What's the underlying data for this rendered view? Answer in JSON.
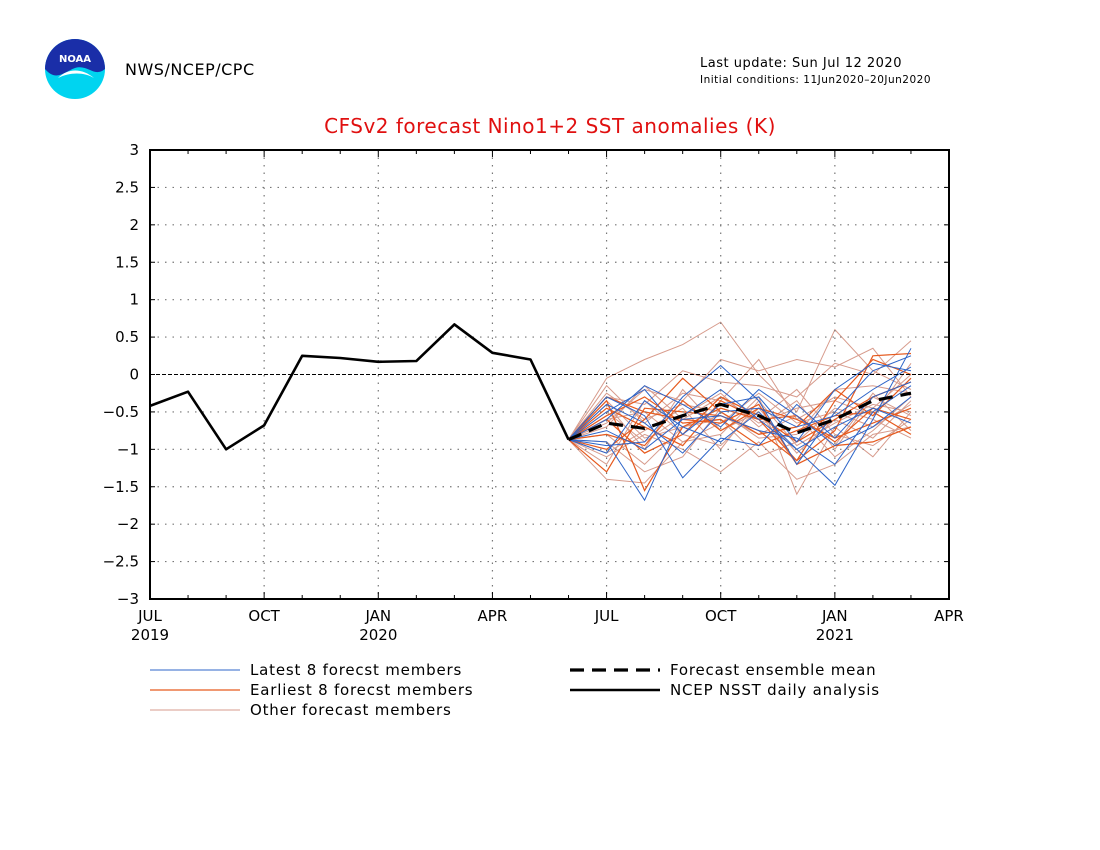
{
  "header": {
    "agency": "NWS/NCEP/CPC",
    "logo_text": "NOAA",
    "last_update": "Last update: Sun Jul 12 2020",
    "initial_conditions": "Initial conditions: 11Jun2020–20Jun2020"
  },
  "colors": {
    "title": "#e01010",
    "latest": "#2d64c8",
    "earliest": "#e65a1e",
    "other": "#d79b8c",
    "mean": "#000000",
    "analysis": "#000000"
  },
  "chart_data": {
    "type": "line",
    "title": "CFSv2 forecast Nino1+2 SST anomalies (K)",
    "xlabel": "",
    "ylabel": "",
    "ylim": [
      -3,
      3
    ],
    "yticks": [
      -3,
      -2.5,
      -2,
      -1.5,
      -1,
      -0.5,
      0,
      0.5,
      1,
      1.5,
      2,
      2.5,
      3
    ],
    "ytick_labels": [
      "−3",
      "−2.5",
      "−2",
      "−1.5",
      "−1",
      "−0.5",
      "0",
      "0.5",
      "1",
      "1.5",
      "2",
      "2.5",
      "3"
    ],
    "xlim": [
      0,
      21
    ],
    "xticks": [
      {
        "x": 0,
        "label": "JUL",
        "year": "2019"
      },
      {
        "x": 3,
        "label": "OCT",
        "year": ""
      },
      {
        "x": 6,
        "label": "JAN",
        "year": "2020"
      },
      {
        "x": 9,
        "label": "APR",
        "year": ""
      },
      {
        "x": 12,
        "label": "JUL",
        "year": ""
      },
      {
        "x": 15,
        "label": "OCT",
        "year": ""
      },
      {
        "x": 18,
        "label": "JAN",
        "year": "2021"
      },
      {
        "x": 21,
        "label": "APR",
        "year": ""
      }
    ],
    "grid": true,
    "zero_line": true,
    "analysis": {
      "name": "NCEP NSST daily analysis",
      "x": [
        0,
        1,
        2,
        3,
        4,
        5,
        6,
        7,
        8,
        9,
        10,
        11
      ],
      "y": [
        -0.42,
        -0.23,
        -1.0,
        -0.68,
        0.25,
        0.22,
        0.17,
        0.18,
        0.67,
        0.29,
        0.2,
        -0.87
      ]
    },
    "ensemble_mean": {
      "name": "Forecast ensemble mean",
      "x": [
        11,
        12,
        13,
        14,
        15,
        16,
        17,
        18,
        19,
        20
      ],
      "y": [
        -0.87,
        -0.65,
        -0.72,
        -0.55,
        -0.4,
        -0.55,
        -0.78,
        -0.6,
        -0.35,
        -0.25
      ]
    },
    "members": {
      "x": [
        11,
        12,
        13,
        14,
        15,
        16,
        17,
        18,
        19,
        20
      ],
      "latest": {
        "name": "Latest 8 forecst members",
        "series": [
          [
            -0.87,
            -0.9,
            -1.68,
            -0.55,
            -0.2,
            -0.6,
            -1.0,
            -1.48,
            -0.6,
            0.35
          ],
          [
            -0.87,
            -0.5,
            -0.2,
            -0.8,
            -0.4,
            -0.3,
            -0.9,
            -0.2,
            0.15,
            0.05
          ],
          [
            -0.87,
            -0.3,
            -0.55,
            -1.38,
            -0.85,
            -0.95,
            -0.4,
            -0.85,
            -0.3,
            -0.1
          ],
          [
            -0.87,
            -0.95,
            -0.9,
            -0.3,
            0.12,
            -0.35,
            -1.2,
            -0.5,
            0.05,
            0.25
          ],
          [
            -0.87,
            -0.6,
            -0.15,
            -0.4,
            -0.7,
            -0.2,
            -0.55,
            -0.95,
            -0.7,
            -0.3
          ],
          [
            -0.87,
            -0.75,
            -1.0,
            -0.6,
            -0.55,
            -0.75,
            -0.85,
            -1.2,
            -0.5,
            -0.15
          ],
          [
            -0.87,
            -0.4,
            -0.65,
            -1.05,
            -0.5,
            -0.45,
            -0.7,
            -0.55,
            -0.2,
            0.1
          ],
          [
            -0.87,
            -1.05,
            -0.35,
            -0.7,
            -0.9,
            -0.5,
            -1.0,
            -0.7,
            -0.45,
            -0.65
          ]
        ]
      },
      "earliest": {
        "name": "Earliest 8 forecst members",
        "series": [
          [
            -0.87,
            -0.35,
            -1.55,
            -0.7,
            -0.45,
            -0.6,
            -1.15,
            -0.75,
            0.25,
            0.28
          ],
          [
            -0.87,
            -1.0,
            -0.6,
            -0.05,
            -0.5,
            -0.8,
            -0.7,
            -0.2,
            -0.55,
            -0.05
          ],
          [
            -0.87,
            -0.3,
            -0.5,
            -0.6,
            -0.65,
            -0.4,
            -1.2,
            -0.95,
            -0.9,
            -0.7
          ],
          [
            -0.87,
            -0.6,
            -1.05,
            -0.8,
            -0.3,
            -0.55,
            -0.9,
            -0.6,
            -0.3,
            -0.1
          ],
          [
            -0.87,
            -1.3,
            -0.45,
            -0.5,
            -0.55,
            -0.75,
            -1.15,
            -0.35,
            0.2,
            0.0
          ],
          [
            -0.87,
            -0.8,
            -0.95,
            -0.35,
            -0.75,
            -0.45,
            -0.6,
            -0.85,
            -0.65,
            -0.45
          ],
          [
            -0.87,
            -0.55,
            -0.3,
            -0.65,
            -0.6,
            -0.95,
            -0.75,
            -0.55,
            -0.5,
            -0.8
          ],
          [
            -0.87,
            -0.45,
            -0.7,
            -0.95,
            -0.35,
            -0.6,
            -0.55,
            -0.9,
            -0.45,
            -0.6
          ]
        ]
      },
      "other": {
        "name": "Other forecast members",
        "series": [
          [
            -0.87,
            -0.05,
            0.2,
            0.4,
            0.7,
            0.0,
            -0.5,
            0.6,
            0.05,
            -0.2
          ],
          [
            -0.87,
            -1.4,
            -1.45,
            -0.9,
            -0.8,
            -0.3,
            -1.6,
            -0.7,
            -1.1,
            -0.5
          ],
          [
            -0.87,
            -0.65,
            -0.2,
            -0.35,
            0.2,
            0.05,
            0.2,
            0.1,
            0.35,
            -0.3
          ],
          [
            -0.87,
            -1.1,
            -0.8,
            -1.0,
            -1.3,
            -0.9,
            -1.4,
            -1.2,
            -0.8,
            -0.7
          ],
          [
            -0.87,
            -0.3,
            -0.4,
            0.05,
            -0.1,
            -0.15,
            -0.3,
            0.15,
            0.0,
            0.45
          ],
          [
            -0.87,
            -0.8,
            -1.2,
            -0.7,
            -0.6,
            -1.1,
            -0.9,
            -0.45,
            -0.6,
            -0.85
          ],
          [
            -0.87,
            -0.15,
            -0.65,
            -0.25,
            -0.35,
            0.2,
            -0.6,
            -0.3,
            -0.45,
            0.0
          ],
          [
            -0.87,
            -0.5,
            -0.9,
            -0.55,
            -0.25,
            -0.7,
            -0.35,
            -1.0,
            -0.3,
            -0.55
          ],
          [
            -0.87,
            -1.2,
            -0.35,
            -0.8,
            -0.95,
            -0.45,
            -1.05,
            -0.6,
            -0.85,
            -0.35
          ],
          [
            -0.87,
            -0.25,
            -0.6,
            -0.4,
            -0.5,
            -0.85,
            -0.8,
            -0.2,
            -0.15,
            -0.25
          ],
          [
            -0.87,
            -0.9,
            -1.3,
            -1.1,
            -0.45,
            -0.6,
            -0.2,
            -0.8,
            -0.95,
            -0.6
          ],
          [
            -0.87,
            -0.6,
            -0.5,
            -0.9,
            -0.65,
            -0.25,
            -0.65,
            -0.5,
            -0.7,
            -0.4
          ],
          [
            -0.87,
            -0.4,
            -1.0,
            -0.2,
            -0.75,
            -0.5,
            -1.2,
            -0.95,
            -0.25,
            -0.75
          ],
          [
            -0.87,
            -0.7,
            -0.15,
            -0.6,
            -0.3,
            -0.65,
            -0.45,
            -0.35,
            -0.55,
            0.15
          ],
          [
            -0.87,
            -1.05,
            -0.75,
            -0.45,
            -1.0,
            -0.35,
            -0.95,
            -0.65,
            -0.4,
            -0.5
          ],
          [
            -0.87,
            -0.35,
            -0.85,
            -0.7,
            -0.55,
            -0.8,
            -0.55,
            -1.1,
            -0.75,
            -0.3
          ]
        ]
      }
    },
    "legend": [
      {
        "label": "Latest 8 forecst members",
        "style": "latest"
      },
      {
        "label": "Earliest 8 forecst members",
        "style": "earliest"
      },
      {
        "label": "Other forecast members",
        "style": "other"
      },
      {
        "label": "Forecast ensemble mean",
        "style": "mean"
      },
      {
        "label": "NCEP NSST daily analysis",
        "style": "analysis"
      }
    ]
  }
}
